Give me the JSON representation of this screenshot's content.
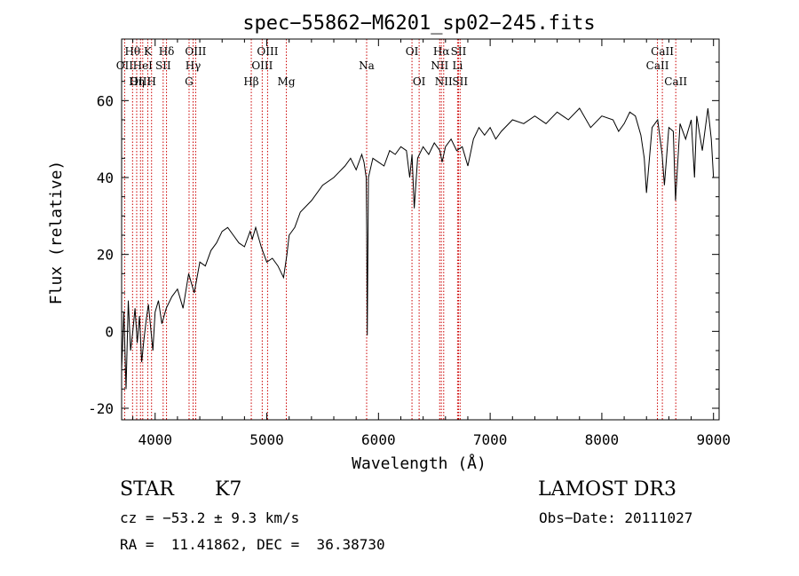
{
  "chart_data": {
    "type": "line",
    "title": "spec−55862−M6201_sp02−245.fits",
    "xlabel": "Wavelength (Å)",
    "ylabel": "Flux (relative)",
    "xlim": [
      3700,
      9050
    ],
    "ylim": [
      -23,
      76
    ],
    "xticks": [
      4000,
      5000,
      6000,
      7000,
      8000,
      9000
    ],
    "yticks": [
      -20,
      0,
      20,
      40,
      60
    ],
    "line_color": "#000000",
    "marker_color": "#cc0000",
    "series": [
      {
        "name": "flux",
        "x": [
          3700,
          3720,
          3740,
          3760,
          3780,
          3800,
          3820,
          3840,
          3860,
          3880,
          3900,
          3920,
          3940,
          3960,
          3980,
          4000,
          4030,
          4060,
          4100,
          4150,
          4200,
          4250,
          4300,
          4350,
          4400,
          4450,
          4500,
          4550,
          4600,
          4650,
          4700,
          4750,
          4800,
          4850,
          4870,
          4900,
          4950,
          5000,
          5050,
          5100,
          5150,
          5180,
          5200,
          5250,
          5300,
          5400,
          5500,
          5600,
          5700,
          5750,
          5800,
          5850,
          5870,
          5890,
          5895,
          5900,
          5910,
          5950,
          6000,
          6050,
          6100,
          6150,
          6200,
          6250,
          6280,
          6300,
          6320,
          6350,
          6400,
          6450,
          6500,
          6550,
          6570,
          6600,
          6650,
          6700,
          6750,
          6800,
          6850,
          6900,
          6950,
          7000,
          7050,
          7100,
          7200,
          7300,
          7400,
          7500,
          7600,
          7700,
          7800,
          7900,
          8000,
          8100,
          8150,
          8200,
          8250,
          8300,
          8350,
          8380,
          8400,
          8450,
          8500,
          8540,
          8560,
          8600,
          8640,
          8660,
          8700,
          8750,
          8800,
          8830,
          8850,
          8900,
          8950,
          8980,
          9000
        ],
        "y": [
          -10,
          5,
          -15,
          8,
          -5,
          0,
          6,
          -3,
          4,
          -8,
          -2,
          3,
          7,
          1,
          -5,
          5,
          8,
          2,
          6,
          9,
          11,
          6,
          15,
          10,
          18,
          17,
          21,
          23,
          26,
          27,
          25,
          23,
          22,
          26,
          24,
          27,
          22,
          18,
          19,
          17,
          14,
          20,
          25,
          27,
          31,
          34,
          38,
          40,
          43,
          45,
          42,
          46,
          44,
          40,
          25,
          -1,
          40,
          45,
          44,
          43,
          47,
          46,
          48,
          47,
          40,
          46,
          32,
          45,
          48,
          46,
          49,
          47,
          44,
          48,
          50,
          47,
          48,
          43,
          50,
          53,
          51,
          53,
          50,
          52,
          55,
          54,
          56,
          54,
          57,
          55,
          58,
          53,
          56,
          55,
          52,
          54,
          57,
          56,
          51,
          45,
          36,
          53,
          55,
          46,
          38,
          53,
          52,
          34,
          54,
          50,
          55,
          40,
          56,
          47,
          58,
          50,
          40
        ]
      }
    ],
    "line_markers": [
      {
        "name": "Hθ",
        "x": 3798,
        "row": 1
      },
      {
        "name": "OII",
        "x": 3727,
        "row": 2
      },
      {
        "name": "OIII",
        "x": 3869,
        "row": 3
      },
      {
        "name": "K",
        "x": 3934,
        "row": 1
      },
      {
        "name": "HeI",
        "x": 3889,
        "row": 2
      },
      {
        "name": "Hη",
        "x": 3835,
        "row": 3
      },
      {
        "name": "SII",
        "x": 4072,
        "row": 2
      },
      {
        "name": "H",
        "x": 3968,
        "row": 3
      },
      {
        "name": "Hδ",
        "x": 4102,
        "row": 1
      },
      {
        "name": "OIII",
        "x": 4363,
        "row": 1
      },
      {
        "name": "Hγ",
        "x": 4340,
        "row": 2
      },
      {
        "name": "G",
        "x": 4304,
        "row": 3
      },
      {
        "name": "OIII",
        "x": 5007,
        "row": 1
      },
      {
        "name": "OIII",
        "x": 4959,
        "row": 2
      },
      {
        "name": "Hβ",
        "x": 4861,
        "row": 3
      },
      {
        "name": "Mg",
        "x": 5175,
        "row": 3
      },
      {
        "name": "Na",
        "x": 5894,
        "row": 2
      },
      {
        "name": "OI",
        "x": 6300,
        "row": 1
      },
      {
        "name": "OI",
        "x": 6364,
        "row": 3
      },
      {
        "name": "Hα",
        "x": 6563,
        "row": 1
      },
      {
        "name": "NII",
        "x": 6548,
        "row": 2
      },
      {
        "name": "NII",
        "x": 6584,
        "row": 3
      },
      {
        "name": "SII",
        "x": 6717,
        "row": 1
      },
      {
        "name": "Li",
        "x": 6708,
        "row": 2
      },
      {
        "name": "SII",
        "x": 6731,
        "row": 3
      },
      {
        "name": "CaII",
        "x": 8542,
        "row": 1
      },
      {
        "name": "CaII",
        "x": 8498,
        "row": 2
      },
      {
        "name": "CaII",
        "x": 8662,
        "row": 3
      }
    ]
  },
  "info": {
    "object_class": "STAR",
    "subclass": "K7",
    "survey": "LAMOST DR3",
    "redshift": "cz = −53.2 ± 9.3 km/s",
    "obs_date": "Obs−Date: 20111027",
    "coords": "RA =  11.41862, DEC =  36.38730"
  }
}
